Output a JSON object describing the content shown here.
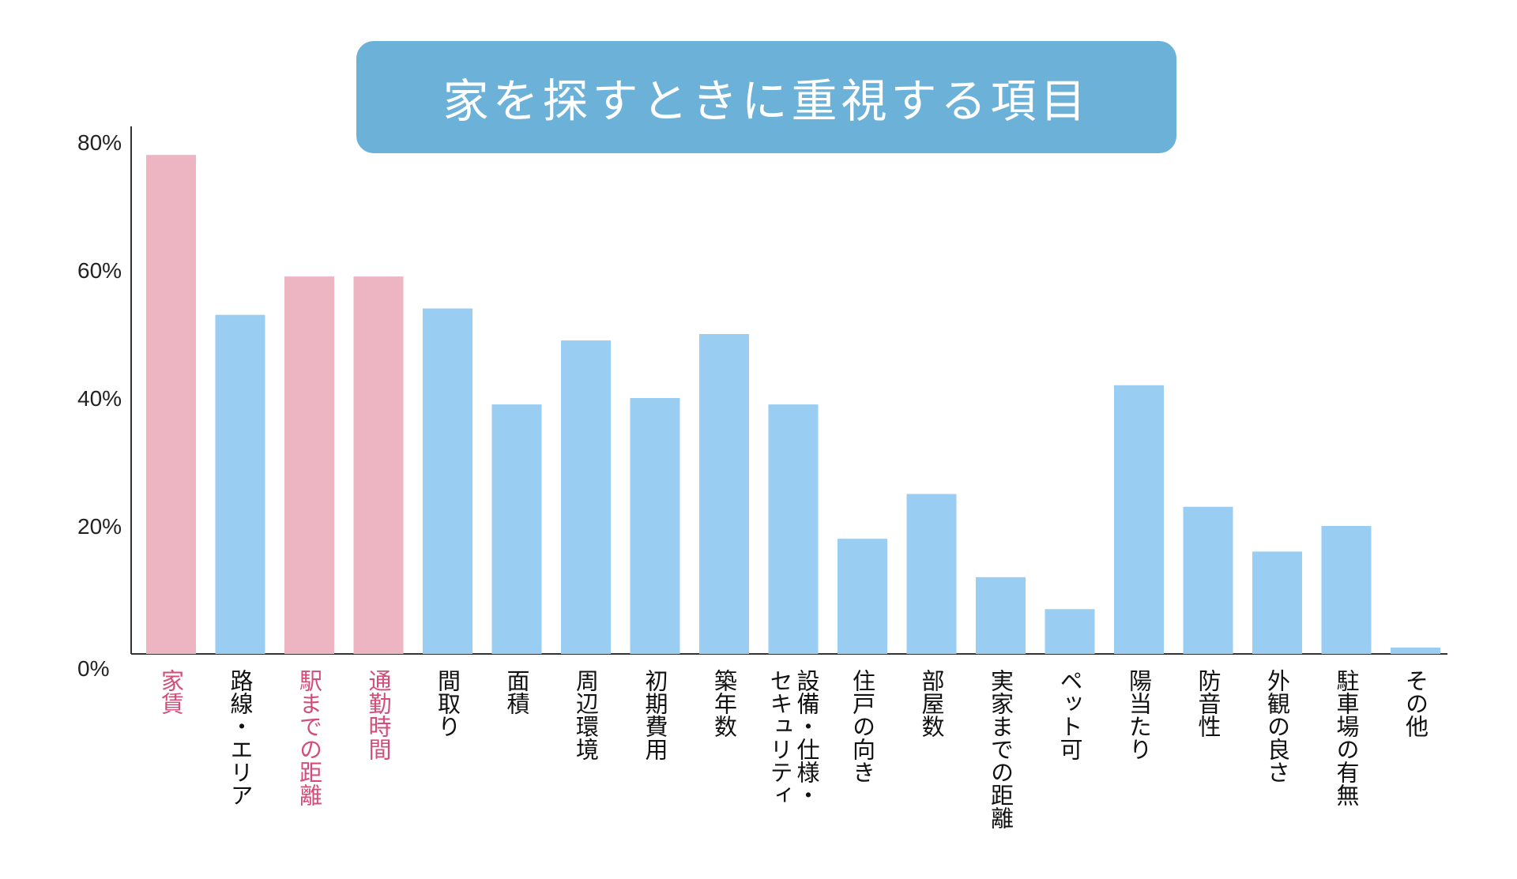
{
  "chart_data": {
    "type": "bar",
    "title": "家を探すときに重視する項目",
    "categories": [
      "家賃",
      "路線・エリア",
      "駅までの距離",
      "通勤時間",
      "間取り",
      "面積",
      "周辺環境",
      "初期費用",
      "築年数",
      "設備・仕様・セキュリティ",
      "住戸の向き",
      "部屋数",
      "実家までの距離",
      "ペット可",
      "陽当たり",
      "防音性",
      "外観の良さ",
      "駐車場の有無",
      "その他"
    ],
    "category_lines": [
      [
        "家賃"
      ],
      [
        "路線・エリア"
      ],
      [
        "駅までの距離"
      ],
      [
        "通勤時間"
      ],
      [
        "間取り"
      ],
      [
        "面積"
      ],
      [
        "周辺環境"
      ],
      [
        "初期費用"
      ],
      [
        "築年数"
      ],
      [
        "設備・仕様・",
        "セキュリティ"
      ],
      [
        "住戸の向き"
      ],
      [
        "部屋数"
      ],
      [
        "実家までの距離"
      ],
      [
        "ペット可"
      ],
      [
        "陽当たり"
      ],
      [
        "防音性"
      ],
      [
        "外観の良さ"
      ],
      [
        "駐車場の有無"
      ],
      [
        "その他"
      ]
    ],
    "values": [
      78,
      53,
      59,
      59,
      54,
      39,
      49,
      40,
      50,
      39,
      18,
      25,
      12,
      7,
      42,
      23,
      16,
      20,
      1
    ],
    "highlighted": [
      true,
      false,
      true,
      true,
      false,
      false,
      false,
      false,
      false,
      false,
      false,
      false,
      false,
      false,
      false,
      false,
      false,
      false,
      false
    ],
    "yticks": [
      "0%",
      "20%",
      "40%",
      "60%",
      "80%"
    ],
    "ylim": [
      0,
      80
    ],
    "grid": false,
    "colors": {
      "highlight_bar": "#edb5c2",
      "normal_bar": "#99cdf2",
      "highlight_label": "#d44d78",
      "normal_label": "#111111",
      "title_box": "#6cb1d7",
      "axis": "#333333"
    }
  }
}
